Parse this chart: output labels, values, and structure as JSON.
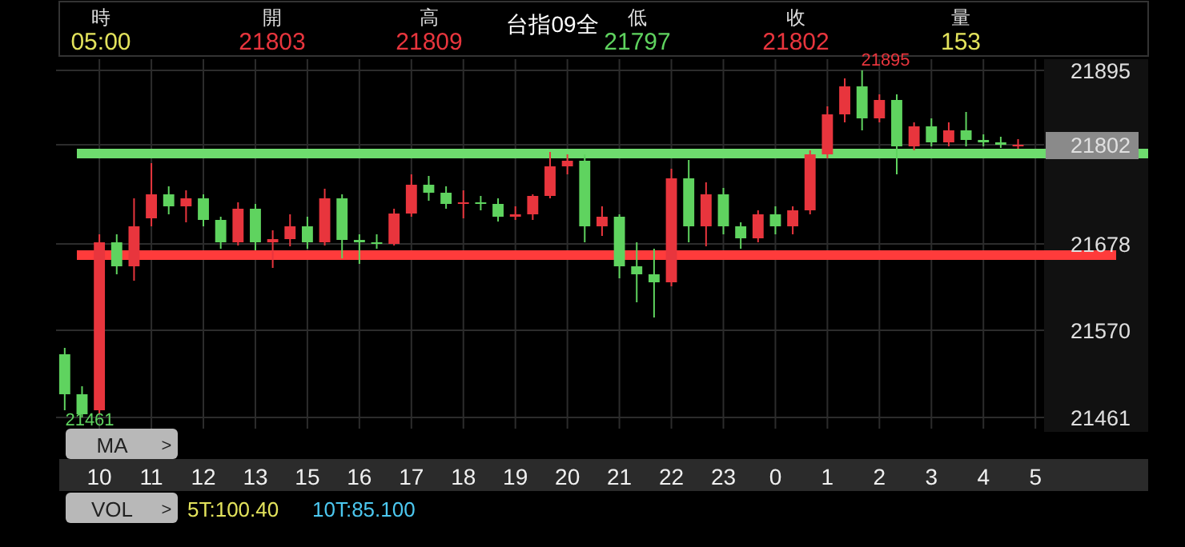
{
  "chart_data": {
    "type": "candlestick",
    "title": "台指09全",
    "categories": [
      null,
      null,
      "10",
      null,
      null,
      "11",
      null,
      null,
      "12",
      null,
      null,
      "13",
      null,
      null,
      "15",
      null,
      null,
      "16",
      null,
      null,
      "17",
      null,
      null,
      "18",
      null,
      null,
      "19",
      null,
      null,
      "20",
      null,
      null,
      "21",
      null,
      null,
      "22",
      null,
      null,
      "23",
      null,
      null,
      "0",
      null,
      null,
      "1",
      null,
      null,
      "2",
      null,
      null,
      "3",
      null,
      null,
      "4",
      null,
      null,
      "5"
    ],
    "ohlc": [
      [
        21540,
        21548,
        21470,
        21490
      ],
      [
        21490,
        21500,
        21461,
        21465
      ],
      [
        21470,
        21690,
        21465,
        21680
      ],
      [
        21680,
        21690,
        21640,
        21650
      ],
      [
        21650,
        21735,
        21632,
        21700
      ],
      [
        21710,
        21779,
        21700,
        21740
      ],
      [
        21740,
        21750,
        21715,
        21725
      ],
      [
        21725,
        21745,
        21705,
        21735
      ],
      [
        21735,
        21740,
        21700,
        21708
      ],
      [
        21708,
        21712,
        21672,
        21680
      ],
      [
        21680,
        21730,
        21676,
        21722
      ],
      [
        21722,
        21728,
        21670,
        21680
      ],
      [
        21680,
        21695,
        21648,
        21684
      ],
      [
        21684,
        21715,
        21675,
        21700
      ],
      [
        21700,
        21712,
        21672,
        21680
      ],
      [
        21680,
        21747,
        21676,
        21735
      ],
      [
        21735,
        21740,
        21660,
        21683
      ],
      [
        21683,
        21690,
        21653,
        21680
      ],
      [
        21680,
        21690,
        21672,
        21678
      ],
      [
        21678,
        21722,
        21676,
        21716
      ],
      [
        21716,
        21765,
        21712,
        21752
      ],
      [
        21752,
        21763,
        21732,
        21742
      ],
      [
        21742,
        21750,
        21722,
        21728
      ],
      [
        21728,
        21745,
        21710,
        21730
      ],
      [
        21730,
        21738,
        21720,
        21728
      ],
      [
        21728,
        21735,
        21706,
        21712
      ],
      [
        21712,
        21725,
        21708,
        21715
      ],
      [
        21715,
        21740,
        21708,
        21738
      ],
      [
        21738,
        21793,
        21735,
        21775
      ],
      [
        21775,
        21790,
        21765,
        21782
      ],
      [
        21782,
        21790,
        21680,
        21700
      ],
      [
        21700,
        21725,
        21688,
        21712
      ],
      [
        21712,
        21715,
        21635,
        21650
      ],
      [
        21650,
        21680,
        21605,
        21640
      ],
      [
        21640,
        21672,
        21586,
        21630
      ],
      [
        21630,
        21772,
        21625,
        21760
      ],
      [
        21760,
        21783,
        21680,
        21700
      ],
      [
        21700,
        21755,
        21675,
        21740
      ],
      [
        21740,
        21748,
        21690,
        21700
      ],
      [
        21700,
        21705,
        21672,
        21685
      ],
      [
        21685,
        21720,
        21680,
        21715
      ],
      [
        21715,
        21725,
        21690,
        21700
      ],
      [
        21700,
        21725,
        21690,
        21720
      ],
      [
        21720,
        21795,
        21715,
        21790
      ],
      [
        21790,
        21850,
        21785,
        21840
      ],
      [
        21840,
        21885,
        21830,
        21875
      ],
      [
        21875,
        21895,
        21820,
        21835
      ],
      [
        21835,
        21865,
        21830,
        21858
      ],
      [
        21858,
        21865,
        21765,
        21800
      ],
      [
        21800,
        21830,
        21795,
        21825
      ],
      [
        21825,
        21835,
        21800,
        21805
      ],
      [
        21805,
        21830,
        21800,
        21820
      ],
      [
        21820,
        21843,
        21800,
        21808
      ],
      [
        21808,
        21815,
        21800,
        21805
      ],
      [
        21805,
        21812,
        21798,
        21802
      ],
      [
        21802,
        21809,
        21797,
        21802
      ],
      null
    ],
    "ylim": [
      21447,
      21909
    ],
    "yticks": [
      21461,
      21570,
      21678,
      21802,
      21895
    ],
    "grid": true,
    "ref_lines": [
      {
        "axis": "y",
        "value": 21791,
        "color": "#6edc6e"
      },
      {
        "axis": "y",
        "value": 21664,
        "color": "#ff3b3b"
      }
    ],
    "annotations": [
      "時",
      "05:00",
      "開",
      "21803",
      "高",
      "21809",
      "低",
      "21797",
      "收",
      "21802",
      "量",
      "153",
      "21895",
      "21461",
      "MA",
      ">",
      "VOL",
      ">",
      "5T:100.40",
      "10T:85.100"
    ]
  }
}
